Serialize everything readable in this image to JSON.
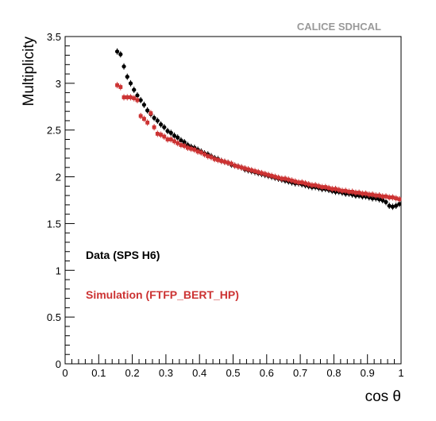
{
  "chart_data": {
    "type": "scatter",
    "collaboration_label": "CALICE SDHCAL",
    "xlabel": "cos θ",
    "ylabel": "Multiplicity",
    "xlim": [
      0,
      1
    ],
    "ylim": [
      0,
      3.5
    ],
    "x_ticks": [
      "0",
      "0.1",
      "0.2",
      "0.3",
      "0.4",
      "0.5",
      "0.6",
      "0.7",
      "0.8",
      "0.9",
      "1"
    ],
    "y_ticks": [
      "0",
      "0.5",
      "1",
      "1.5",
      "2",
      "2.5",
      "3",
      "3.5"
    ],
    "grid": false,
    "legend_placement": "lower-left",
    "colors": {
      "data": "#000000",
      "simulation": "#cc3333",
      "collaboration": "#999999"
    },
    "series": [
      {
        "name": "Data (SPS H6)",
        "color": "#000000",
        "marker": "circle",
        "x": [
          0.155,
          0.165,
          0.175,
          0.185,
          0.195,
          0.205,
          0.215,
          0.225,
          0.235,
          0.245,
          0.255,
          0.265,
          0.275,
          0.285,
          0.295,
          0.305,
          0.315,
          0.325,
          0.335,
          0.345,
          0.355,
          0.365,
          0.375,
          0.385,
          0.395,
          0.405,
          0.415,
          0.425,
          0.435,
          0.445,
          0.455,
          0.465,
          0.475,
          0.485,
          0.495,
          0.505,
          0.515,
          0.525,
          0.535,
          0.545,
          0.555,
          0.565,
          0.575,
          0.585,
          0.595,
          0.605,
          0.615,
          0.625,
          0.635,
          0.645,
          0.655,
          0.665,
          0.675,
          0.685,
          0.695,
          0.705,
          0.715,
          0.725,
          0.735,
          0.745,
          0.755,
          0.765,
          0.775,
          0.785,
          0.795,
          0.805,
          0.815,
          0.825,
          0.835,
          0.845,
          0.855,
          0.865,
          0.875,
          0.885,
          0.895,
          0.905,
          0.915,
          0.925,
          0.935,
          0.945,
          0.955,
          0.965,
          0.975,
          0.985,
          0.995
        ],
        "y": [
          3.34,
          3.31,
          3.18,
          3.07,
          3.0,
          2.93,
          2.87,
          2.82,
          2.77,
          2.71,
          2.67,
          2.63,
          2.6,
          2.56,
          2.53,
          2.49,
          2.47,
          2.44,
          2.42,
          2.39,
          2.37,
          2.34,
          2.32,
          2.31,
          2.29,
          2.27,
          2.25,
          2.24,
          2.22,
          2.2,
          2.19,
          2.17,
          2.16,
          2.15,
          2.13,
          2.12,
          2.11,
          2.1,
          2.08,
          2.07,
          2.06,
          2.05,
          2.04,
          2.03,
          2.02,
          2.01,
          2.0,
          1.99,
          1.98,
          1.97,
          1.96,
          1.95,
          1.94,
          1.93,
          1.93,
          1.92,
          1.91,
          1.9,
          1.89,
          1.89,
          1.88,
          1.87,
          1.87,
          1.86,
          1.85,
          1.84,
          1.84,
          1.83,
          1.82,
          1.82,
          1.81,
          1.8,
          1.8,
          1.79,
          1.79,
          1.78,
          1.77,
          1.77,
          1.76,
          1.75,
          1.73,
          1.69,
          1.68,
          1.69,
          1.71
        ]
      },
      {
        "name": "Simulation (FTFP_BERT_HP)",
        "color": "#cc3333",
        "marker": "square",
        "x": [
          0.155,
          0.165,
          0.175,
          0.185,
          0.195,
          0.205,
          0.215,
          0.225,
          0.235,
          0.245,
          0.255,
          0.265,
          0.275,
          0.285,
          0.295,
          0.305,
          0.315,
          0.325,
          0.335,
          0.345,
          0.355,
          0.365,
          0.375,
          0.385,
          0.395,
          0.405,
          0.415,
          0.425,
          0.435,
          0.445,
          0.455,
          0.465,
          0.475,
          0.485,
          0.495,
          0.505,
          0.515,
          0.525,
          0.535,
          0.545,
          0.555,
          0.565,
          0.575,
          0.585,
          0.595,
          0.605,
          0.615,
          0.625,
          0.635,
          0.645,
          0.655,
          0.665,
          0.675,
          0.685,
          0.695,
          0.705,
          0.715,
          0.725,
          0.735,
          0.745,
          0.755,
          0.765,
          0.775,
          0.785,
          0.795,
          0.805,
          0.815,
          0.825,
          0.835,
          0.845,
          0.855,
          0.865,
          0.875,
          0.885,
          0.895,
          0.905,
          0.915,
          0.925,
          0.935,
          0.945,
          0.955,
          0.965,
          0.975,
          0.985,
          0.995
        ],
        "y": [
          2.98,
          2.96,
          2.85,
          2.85,
          2.85,
          2.84,
          2.82,
          2.65,
          2.62,
          2.58,
          2.68,
          2.53,
          2.46,
          2.45,
          2.43,
          2.4,
          2.4,
          2.38,
          2.36,
          2.34,
          2.33,
          2.31,
          2.3,
          2.29,
          2.27,
          2.26,
          2.24,
          2.22,
          2.21,
          2.19,
          2.18,
          2.17,
          2.16,
          2.15,
          2.14,
          2.12,
          2.11,
          2.1,
          2.09,
          2.08,
          2.07,
          2.06,
          2.05,
          2.04,
          2.03,
          2.02,
          2.01,
          2.0,
          1.99,
          1.98,
          1.98,
          1.97,
          1.96,
          1.95,
          1.94,
          1.94,
          1.93,
          1.92,
          1.91,
          1.91,
          1.9,
          1.89,
          1.89,
          1.88,
          1.87,
          1.87,
          1.86,
          1.85,
          1.85,
          1.84,
          1.84,
          1.83,
          1.83,
          1.82,
          1.82,
          1.81,
          1.81,
          1.8,
          1.8,
          1.79,
          1.79,
          1.78,
          1.78,
          1.77,
          1.76
        ]
      }
    ]
  }
}
